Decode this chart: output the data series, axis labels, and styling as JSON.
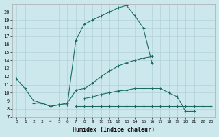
{
  "xlabel": "Humidex (Indice chaleur)",
  "ylabel": "",
  "xlim": [
    -0.5,
    23.5
  ],
  "ylim": [
    7,
    21
  ],
  "xticks": [
    0,
    1,
    2,
    3,
    4,
    5,
    6,
    7,
    8,
    9,
    10,
    11,
    12,
    13,
    14,
    15,
    16,
    17,
    18,
    19,
    20,
    21,
    22,
    23
  ],
  "yticks": [
    7,
    8,
    9,
    10,
    11,
    12,
    13,
    14,
    15,
    16,
    17,
    18,
    19,
    20
  ],
  "bg_color": "#cce8ed",
  "grid_color": "#b0d0d8",
  "line_color": "#1a6b60",
  "line1_y": [
    11.7,
    10.5,
    9.0,
    8.7,
    8.3,
    8.5,
    8.5,
    16.5,
    18.5,
    19.0,
    19.5,
    20.0,
    20.5,
    20.8,
    19.5,
    18.0,
    13.7,
    null,
    null,
    null,
    null,
    null,
    null,
    null
  ],
  "line2_y": [
    null,
    null,
    8.7,
    8.7,
    8.3,
    8.5,
    8.7,
    10.3,
    10.5,
    11.2,
    12.0,
    12.7,
    13.3,
    13.7,
    14.0,
    14.3,
    14.5,
    null,
    null,
    null,
    null,
    null,
    null,
    null
  ],
  "line3_y": [
    null,
    null,
    null,
    null,
    null,
    null,
    null,
    8.3,
    8.3,
    8.3,
    8.3,
    8.3,
    8.3,
    8.3,
    8.3,
    8.3,
    8.3,
    8.3,
    8.3,
    8.3,
    8.3,
    8.3,
    8.3,
    8.3
  ],
  "line4_y": [
    null,
    null,
    null,
    null,
    null,
    null,
    null,
    null,
    9.3,
    9.5,
    9.8,
    10.0,
    10.2,
    10.3,
    10.5,
    10.5,
    10.5,
    10.5,
    10.0,
    9.5,
    7.7,
    7.7,
    null,
    null
  ]
}
